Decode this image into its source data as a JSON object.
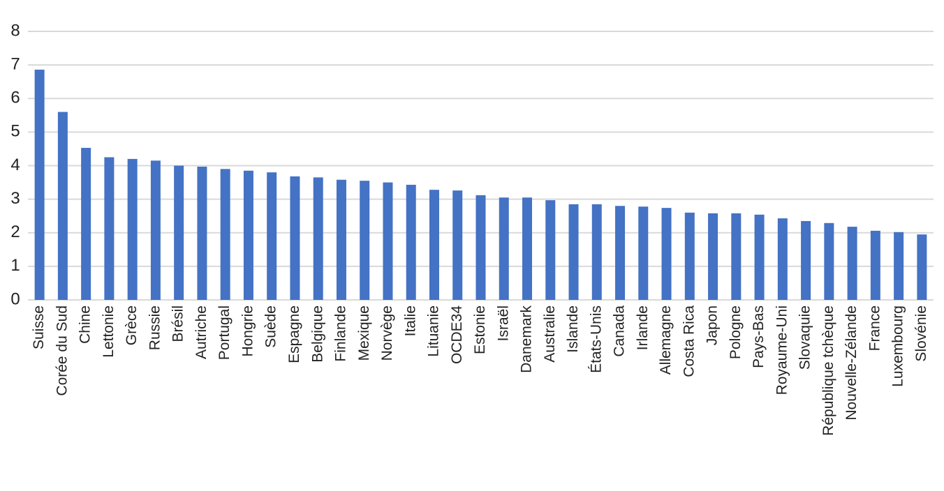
{
  "chart_data": {
    "type": "bar",
    "categories": [
      "Suisse",
      "Corée du Sud",
      "Chine",
      "Lettonie",
      "Grèce",
      "Russie",
      "Brésil",
      "Autriche",
      "Portugal",
      "Hongrie",
      "Suède",
      "Espagne",
      "Belgique",
      "Finlande",
      "Mexique",
      "Norvège",
      "Italie",
      "Lituanie",
      "OCDE34",
      "Estonie",
      "Israël",
      "Danemark",
      "Australie",
      "Islande",
      "États-Unis",
      "Canada",
      "Irlande",
      "Allemagne",
      "Costa Rica",
      "Japon",
      "Pologne",
      "Pays-Bas",
      "Royaume-Uni",
      "Slovaquie",
      "République tchèque",
      "Nouvelle-Zélande",
      "France",
      "Luxembourg",
      "Slovénie"
    ],
    "values": [
      6.86,
      5.6,
      4.53,
      4.25,
      4.2,
      4.15,
      4.0,
      3.97,
      3.9,
      3.85,
      3.8,
      3.68,
      3.65,
      3.58,
      3.55,
      3.5,
      3.43,
      3.28,
      3.26,
      3.12,
      3.05,
      3.05,
      2.97,
      2.85,
      2.85,
      2.8,
      2.78,
      2.74,
      2.6,
      2.58,
      2.58,
      2.54,
      2.43,
      2.35,
      2.29,
      2.18,
      2.06,
      2.02,
      1.95
    ],
    "color": "#4472c4",
    "ylim": [
      0,
      8
    ],
    "yticks": [
      0,
      1,
      2,
      3,
      4,
      5,
      6,
      7,
      8
    ],
    "grid": true
  }
}
